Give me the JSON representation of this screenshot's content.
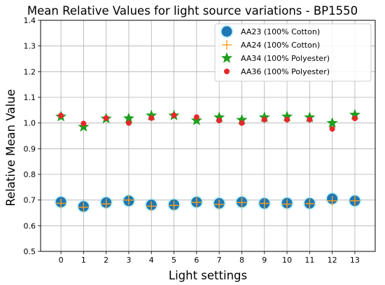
{
  "chart_data": {
    "type": "scatter",
    "title": "Mean Relative Values for light source variations - BP1550",
    "xlabel": "Light settings",
    "ylabel": "Relative Mean Value",
    "xlim": [
      -0.9,
      13.9
    ],
    "ylim": [
      0.5,
      1.4
    ],
    "xticks": [
      0,
      1,
      2,
      3,
      4,
      5,
      6,
      7,
      8,
      9,
      10,
      11,
      12,
      13
    ],
    "yticks": [
      0.5,
      0.6,
      0.7,
      0.8,
      0.9,
      1.0,
      1.1,
      1.2,
      1.3,
      1.4
    ],
    "ytick_labels": [
      "0.5",
      "0.6",
      "0.7",
      "0.8",
      "0.9",
      "1.0",
      "1.1",
      "1.2",
      "1.3",
      "1.4"
    ],
    "grid": true,
    "legend_position": "top-right",
    "x": [
      0,
      1,
      2,
      3,
      4,
      5,
      6,
      7,
      8,
      9,
      10,
      11,
      12,
      13
    ],
    "series": [
      {
        "name": "AA23 (100% Cotton)",
        "marker": "circle",
        "color": "#1f77b4",
        "glow": "#7fe8f5",
        "values": [
          0.692,
          0.675,
          0.69,
          0.697,
          0.681,
          0.682,
          0.692,
          0.687,
          0.692,
          0.687,
          0.688,
          0.687,
          0.705,
          0.697
        ]
      },
      {
        "name": "AA24 (100% Cotton)",
        "marker": "plus",
        "color": "#ff9f1a",
        "values": [
          0.687,
          0.672,
          0.685,
          0.7,
          0.676,
          0.679,
          0.691,
          0.683,
          0.69,
          0.687,
          0.684,
          0.686,
          0.697,
          0.697
        ]
      },
      {
        "name": "AA34 (100% Polyester)",
        "marker": "star",
        "color": "#1f9e1f",
        "values": [
          1.025,
          0.985,
          1.017,
          1.018,
          1.029,
          1.029,
          1.01,
          1.022,
          1.012,
          1.022,
          1.025,
          1.022,
          1.0,
          1.032
        ]
      },
      {
        "name": "AA36 (100% Polyester)",
        "marker": "dot",
        "color": "#e8282b",
        "values": [
          1.029,
          0.998,
          1.019,
          1.0,
          1.019,
          1.03,
          1.023,
          1.01,
          1.0,
          1.013,
          1.013,
          1.013,
          0.977,
          1.018
        ]
      }
    ]
  }
}
